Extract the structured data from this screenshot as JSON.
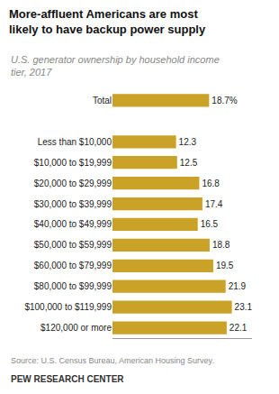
{
  "chart_data": {
    "type": "bar",
    "orientation": "horizontal",
    "title": "More-affluent Americans are most\nlikely to have backup power supply",
    "subtitle": "U.S. generator ownership by household income\ntier, 2017",
    "annotations": [
      "Source: U.S. Census Bureau, American Housing Survey.",
      "PEW RESEARCH CENTER"
    ],
    "categories": [
      "Total",
      null,
      "Less than $10,000",
      "$10,000 to $19,999",
      "$20,000 to $29,999",
      "$30,000 to $39,999",
      "$40,000 to $49,999",
      "$50,000 to $59,999",
      "$60,000 to $79,999",
      "$80,000 to $99,999",
      "$100,000 to $119,999",
      "$120,000 or more"
    ],
    "values": [
      18.7,
      null,
      12.3,
      12.5,
      16.8,
      17.4,
      16.5,
      18.8,
      19.5,
      21.9,
      23.1,
      22.1
    ],
    "value_labels": [
      "18.7%",
      null,
      "12.3",
      "12.5",
      "16.8",
      "17.4",
      "16.5",
      "18.8",
      "19.5",
      "21.9",
      "23.1",
      "22.1"
    ],
    "data_labels": true,
    "color": "#C9A227",
    "xlim": [
      0,
      27
    ],
    "tick_labels": "y",
    "grid": false
  }
}
